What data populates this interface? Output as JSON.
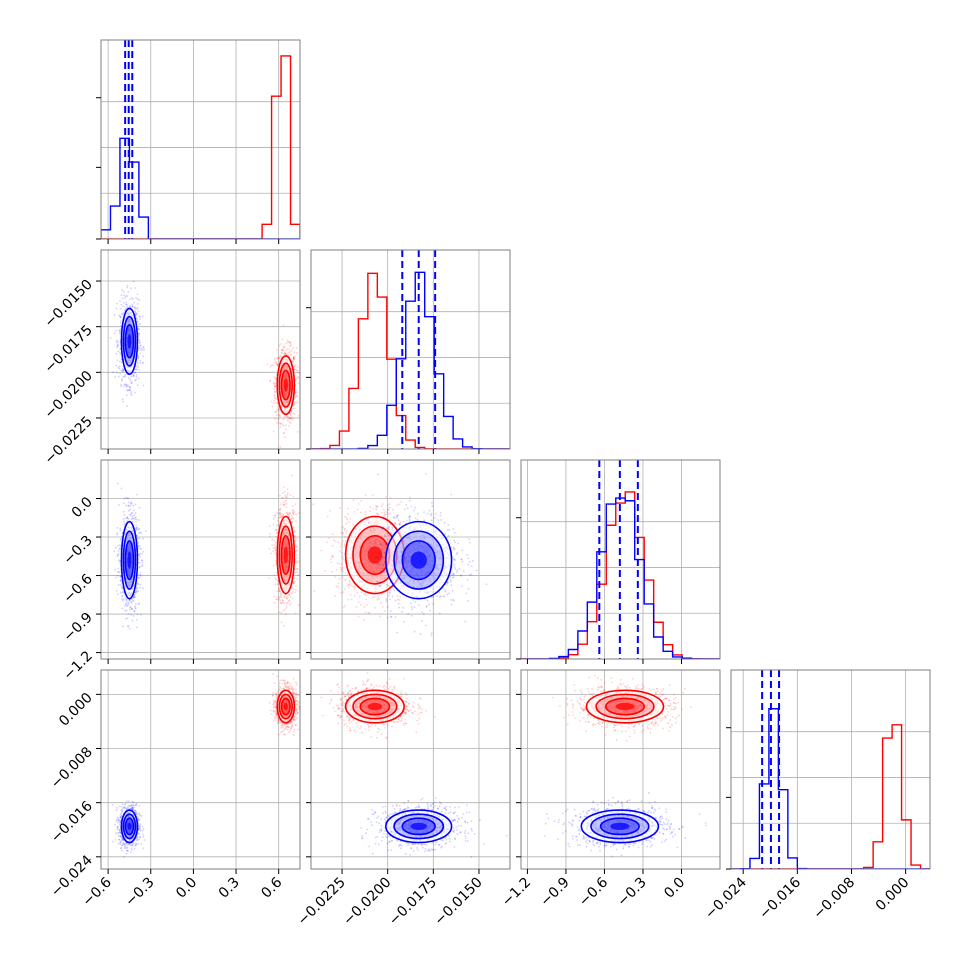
{
  "chart_data": {
    "type": "corner",
    "grid": true,
    "series": [
      {
        "name": "",
        "color": "#ff0000",
        "hist_color": "#ff0000",
        "show_quantiles": false
      },
      {
        "name": "",
        "color": "#0000ff",
        "hist_color": "#0000ff",
        "show_quantiles": true
      }
    ],
    "parameters": [
      {
        "range": [
          -0.65,
          0.75
        ],
        "ticks": [
          -0.6,
          -0.3,
          0.0,
          0.3,
          0.6
        ],
        "tick_labels": [
          "−0.6",
          "−0.3",
          "0.0",
          "0.3",
          "0.6"
        ],
        "red": {
          "mean": 0.65,
          "sd": 0.03
        },
        "blue": {
          "mean": -0.45,
          "sd": 0.028
        },
        "quantiles_blue": [
          -0.48,
          -0.455,
          -0.43
        ],
        "red_hist": [
          0,
          0,
          0,
          0,
          0,
          0,
          0,
          0,
          0,
          0,
          0,
          0,
          0,
          0,
          0,
          0,
          0,
          0.08,
          0.78,
          1.0,
          0.08
        ],
        "blue_hist": [
          0.05,
          0.18,
          0.55,
          0.42,
          0.12,
          0,
          0,
          0,
          0,
          0,
          0,
          0,
          0,
          0,
          0,
          0,
          0,
          0,
          0,
          0,
          0
        ]
      },
      {
        "range": [
          -0.0242,
          -0.0133
        ],
        "ticks": [
          -0.0225,
          -0.02,
          -0.0175,
          -0.015
        ],
        "tick_labels": [
          "−0.0225",
          "−0.0200",
          "−0.0175",
          "−0.0150"
        ],
        "red": {
          "mean": -0.0207,
          "sd": 0.0008
        },
        "blue": {
          "mean": -0.0183,
          "sd": 0.0009
        },
        "quantiles_blue": [
          -0.0192,
          -0.0183,
          -0.0174
        ]
      },
      {
        "range": [
          -1.25,
          0.3
        ],
        "ticks": [
          -1.2,
          -0.9,
          -0.6,
          -0.3,
          0.0
        ],
        "tick_labels": [
          "−1.2",
          "−0.9",
          "−0.6",
          "−0.3",
          "0.0"
        ],
        "red": {
          "mean": -0.44,
          "sd": 0.15
        },
        "blue": {
          "mean": -0.48,
          "sd": 0.15
        },
        "quantiles_blue": [
          -0.64,
          -0.48,
          -0.34
        ]
      },
      {
        "range": [
          -0.0258,
          0.0036
        ],
        "ticks": [
          -0.024,
          -0.016,
          -0.008,
          0.0
        ],
        "tick_labels": [
          "−0.024",
          "−0.016",
          "−0.008",
          "0.000"
        ],
        "red": {
          "mean": -0.0018,
          "sd": 0.0012
        },
        "blue": {
          "mean": -0.0195,
          "sd": 0.0012
        },
        "quantiles_blue": [
          -0.0212,
          -0.0199,
          -0.0187
        ]
      }
    ],
    "panels": [
      {
        "row": 0,
        "col": 0,
        "kind": "hist"
      },
      {
        "row": 1,
        "col": 0,
        "kind": "scatter"
      },
      {
        "row": 1,
        "col": 1,
        "kind": "hist"
      },
      {
        "row": 2,
        "col": 0,
        "kind": "scatter"
      },
      {
        "row": 2,
        "col": 1,
        "kind": "scatter"
      },
      {
        "row": 2,
        "col": 2,
        "kind": "hist"
      },
      {
        "row": 3,
        "col": 0,
        "kind": "scatter"
      },
      {
        "row": 3,
        "col": 1,
        "kind": "scatter"
      },
      {
        "row": 3,
        "col": 2,
        "kind": "scatter"
      },
      {
        "row": 3,
        "col": 3,
        "kind": "hist"
      }
    ],
    "contour_levels_sigma": [
      1.0,
      1.5,
      2.0
    ]
  }
}
